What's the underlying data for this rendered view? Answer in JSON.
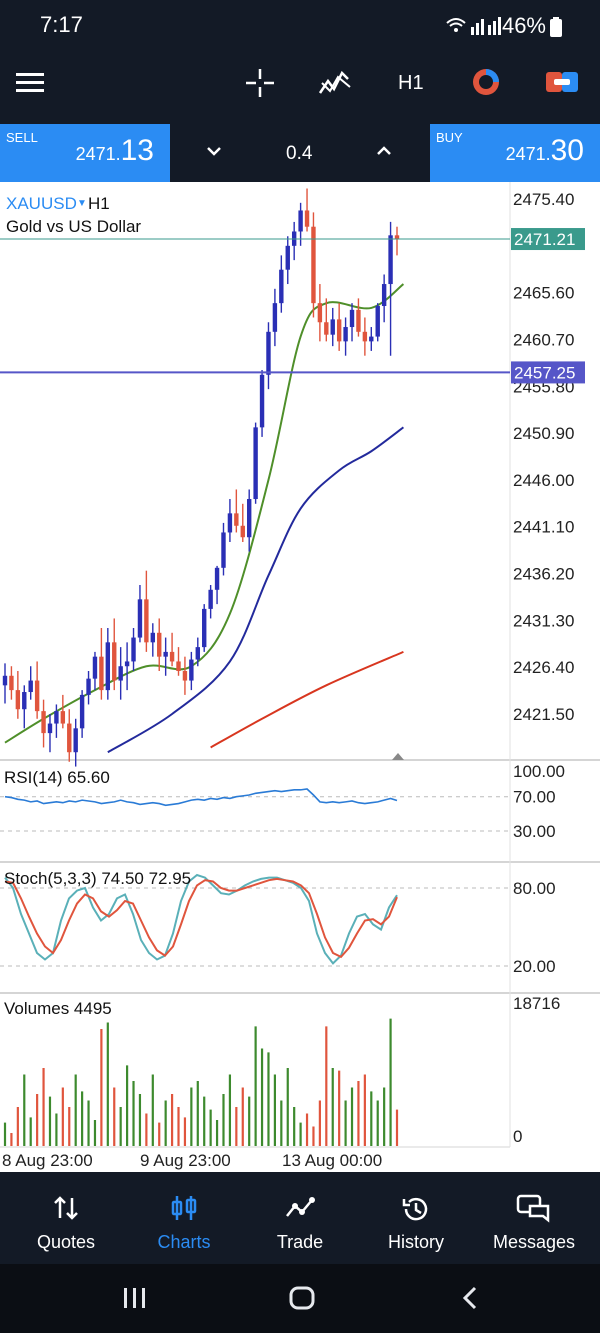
{
  "status": {
    "time": "7:17",
    "battery": "46%"
  },
  "toolbar": {
    "timeframe": "H1"
  },
  "quote": {
    "sell_label": "SELL",
    "sell_price_main": "2471.",
    "sell_price_big": "13",
    "lot": "0.4",
    "buy_label": "BUY",
    "buy_price_main": "2471.",
    "buy_price_big": "30"
  },
  "chart": {
    "symbol": "XAUUSD",
    "timeframe": "H1",
    "description": "Gold vs US Dollar",
    "price_labels": [
      "2475.40",
      "2465.60",
      "2460.70",
      "2455.80",
      "2450.90",
      "2446.00",
      "2441.10",
      "2436.20",
      "2431.30",
      "2426.40",
      "2421.50"
    ],
    "current_price_label": "2471.21",
    "hline_label": "2457.25",
    "time_labels": [
      "8 Aug 23:00",
      "9 Aug 23:00",
      "13 Aug 00:00"
    ],
    "colors": {
      "bull": "#2a2fb5",
      "bear": "#e0553d",
      "ma_fast": "#4f8f2a",
      "ma_mid": "#232a9c",
      "ma_slow": "#d8361f",
      "hline": "#5656c8",
      "current": "#3a9a8c"
    }
  },
  "rsi": {
    "label": "RSI(14) 65.60",
    "levels": [
      "100.00",
      "70.00",
      "30.00"
    ]
  },
  "stoch": {
    "label": "Stoch(5,3,3) 74.50 72.95",
    "levels": [
      "80.00",
      "20.00"
    ]
  },
  "volumes": {
    "label": "Volumes 4495",
    "max": "18716",
    "min": "0"
  },
  "chart_data": {
    "type": "candlestick",
    "symbol": "XAUUSD",
    "timeframe": "H1",
    "x_ticks": [
      "8 Aug 23:00",
      "9 Aug 23:00",
      "13 Aug 00:00"
    ],
    "ylim": [
      2419.0,
      2477.0
    ],
    "candles": [
      [
        2424.5,
        2426.8,
        2422.6,
        2425.5
      ],
      [
        2425.5,
        2426.5,
        2423.0,
        2424.0
      ],
      [
        2424.0,
        2426.0,
        2421.0,
        2422.0
      ],
      [
        2422.0,
        2424.5,
        2420.0,
        2423.8
      ],
      [
        2423.8,
        2426.5,
        2423.0,
        2425.0
      ],
      [
        2425.0,
        2427.0,
        2421.0,
        2421.8
      ],
      [
        2421.8,
        2423.0,
        2418.0,
        2419.5
      ],
      [
        2419.5,
        2421.5,
        2417.5,
        2420.5
      ],
      [
        2420.5,
        2422.5,
        2419.0,
        2421.8
      ],
      [
        2421.8,
        2423.5,
        2420.0,
        2420.5
      ],
      [
        2420.5,
        2422.0,
        2416.5,
        2417.5
      ],
      [
        2417.5,
        2421.0,
        2416.0,
        2420.0
      ],
      [
        2420.0,
        2424.0,
        2419.0,
        2423.5
      ],
      [
        2423.5,
        2426.0,
        2422.5,
        2425.2
      ],
      [
        2425.2,
        2428.0,
        2424.0,
        2427.5
      ],
      [
        2427.5,
        2430.5,
        2423.0,
        2424.0
      ],
      [
        2424.0,
        2430.5,
        2423.0,
        2429.0
      ],
      [
        2429.0,
        2431.5,
        2424.0,
        2425.0
      ],
      [
        2425.0,
        2428.5,
        2423.0,
        2426.5
      ],
      [
        2426.5,
        2429.0,
        2424.0,
        2427.0
      ],
      [
        2427.0,
        2430.5,
        2426.0,
        2429.5
      ],
      [
        2429.5,
        2435.0,
        2429.0,
        2433.5
      ],
      [
        2433.5,
        2436.5,
        2428.0,
        2429.0
      ],
      [
        2429.0,
        2431.0,
        2427.5,
        2430.0
      ],
      [
        2430.0,
        2431.5,
        2426.0,
        2427.5
      ],
      [
        2427.5,
        2429.5,
        2425.5,
        2428.0
      ],
      [
        2428.0,
        2430.0,
        2426.5,
        2427.0
      ],
      [
        2427.0,
        2428.5,
        2425.5,
        2426.0
      ],
      [
        2426.0,
        2427.5,
        2423.5,
        2425.0
      ],
      [
        2425.0,
        2428.0,
        2424.0,
        2427.2
      ],
      [
        2427.2,
        2429.5,
        2426.5,
        2428.5
      ],
      [
        2428.5,
        2433.0,
        2428.0,
        2432.5
      ],
      [
        2432.5,
        2435.0,
        2431.5,
        2434.5
      ],
      [
        2434.5,
        2437.0,
        2433.0,
        2436.8
      ],
      [
        2436.8,
        2441.5,
        2436.0,
        2440.5
      ],
      [
        2440.5,
        2444.0,
        2439.5,
        2442.5
      ],
      [
        2442.5,
        2445.0,
        2440.5,
        2441.2
      ],
      [
        2441.2,
        2443.5,
        2439.5,
        2440.0
      ],
      [
        2440.0,
        2445.0,
        2438.5,
        2444.0
      ],
      [
        2444.0,
        2452.0,
        2443.5,
        2451.5
      ],
      [
        2451.5,
        2457.5,
        2450.5,
        2457.0
      ],
      [
        2457.0,
        2462.5,
        2455.5,
        2461.5
      ],
      [
        2461.5,
        2466.0,
        2460.0,
        2464.5
      ],
      [
        2464.5,
        2469.5,
        2463.5,
        2468.0
      ],
      [
        2468.0,
        2471.5,
        2466.5,
        2470.5
      ],
      [
        2470.5,
        2473.0,
        2469.0,
        2472.0
      ],
      [
        2472.0,
        2475.0,
        2470.5,
        2474.2
      ],
      [
        2474.2,
        2476.5,
        2472.0,
        2472.5
      ],
      [
        2472.5,
        2474.0,
        2463.0,
        2464.5
      ],
      [
        2464.5,
        2466.5,
        2460.5,
        2462.5
      ],
      [
        2462.5,
        2465.0,
        2460.5,
        2461.2
      ],
      [
        2461.2,
        2464.0,
        2460.0,
        2462.8
      ],
      [
        2462.8,
        2464.5,
        2459.5,
        2460.5
      ],
      [
        2460.5,
        2463.0,
        2459.0,
        2462.0
      ],
      [
        2462.0,
        2464.5,
        2460.5,
        2463.8
      ],
      [
        2463.8,
        2465.0,
        2461.0,
        2461.5
      ],
      [
        2461.5,
        2463.0,
        2459.0,
        2460.5
      ],
      [
        2460.5,
        2462.0,
        2459.5,
        2461.0
      ],
      [
        2461.0,
        2464.5,
        2460.5,
        2464.2
      ],
      [
        2464.2,
        2467.5,
        2462.5,
        2466.5
      ],
      [
        2466.5,
        2473.0,
        2459.0,
        2471.6
      ],
      [
        2471.6,
        2472.5,
        2469.5,
        2471.2
      ]
    ],
    "moving_averages": [
      {
        "name": "fast",
        "color": "#4f8f2a",
        "points": [
          [
            0,
            2418.5
          ],
          [
            6,
            2421.0
          ],
          [
            14,
            2424.0
          ],
          [
            22,
            2426.5
          ],
          [
            29,
            2426.5
          ],
          [
            35,
            2432.0
          ],
          [
            41,
            2446.0
          ],
          [
            46,
            2461.0
          ],
          [
            50,
            2464.5
          ],
          [
            57,
            2464.0
          ],
          [
            62,
            2466.5
          ]
        ]
      },
      {
        "name": "mid",
        "color": "#232a9c",
        "points": [
          [
            16,
            2417.5
          ],
          [
            26,
            2421.5
          ],
          [
            35,
            2427.0
          ],
          [
            41,
            2436.0
          ],
          [
            46,
            2443.0
          ],
          [
            52,
            2447.0
          ],
          [
            57,
            2449.0
          ],
          [
            62,
            2451.5
          ]
        ]
      },
      {
        "name": "slow",
        "color": "#d8361f",
        "points": [
          [
            32,
            2418.0
          ],
          [
            40,
            2421.0
          ],
          [
            50,
            2424.5
          ],
          [
            62,
            2428.0
          ]
        ]
      }
    ],
    "current_price": 2471.21,
    "horizontal_line": 2457.25,
    "rsi": {
      "period": 14,
      "value": 65.6,
      "levels": [
        100,
        70,
        30
      ],
      "values": [
        70,
        69,
        67,
        66,
        64,
        65,
        62,
        63,
        64,
        63,
        65,
        64,
        66,
        65,
        64,
        62,
        63,
        64,
        66,
        64,
        63,
        61,
        62,
        63,
        62,
        60,
        61,
        62,
        64,
        66,
        67,
        66,
        68,
        67,
        69,
        68,
        70,
        71,
        72,
        74,
        75,
        76,
        77,
        76,
        77,
        78,
        78,
        79,
        72,
        64,
        63,
        64,
        63,
        64,
        65,
        63,
        62,
        63,
        64,
        66,
        68,
        65.6
      ]
    },
    "stoch": {
      "params": "5,3,3",
      "k": 74.5,
      "d": 72.95,
      "levels": [
        80,
        20
      ],
      "k_values": [
        88,
        80,
        60,
        45,
        30,
        25,
        30,
        55,
        72,
        78,
        80,
        65,
        55,
        60,
        72,
        75,
        60,
        40,
        30,
        25,
        28,
        45,
        70,
        85,
        90,
        88,
        82,
        76,
        75,
        78,
        82,
        85,
        87,
        88,
        88,
        86,
        84,
        80,
        70,
        45,
        30,
        22,
        28,
        45,
        58,
        60,
        52,
        48,
        65,
        74.5
      ],
      "d_values": [
        85,
        84,
        72,
        58,
        45,
        35,
        30,
        40,
        55,
        68,
        75,
        72,
        62,
        58,
        63,
        70,
        68,
        55,
        42,
        32,
        28,
        35,
        52,
        70,
        82,
        86,
        85,
        80,
        78,
        78,
        80,
        82,
        84,
        86,
        87,
        86,
        85,
        82,
        76,
        60,
        42,
        30,
        27,
        34,
        45,
        55,
        56,
        52,
        58,
        72.95
      ]
    },
    "volumes": {
      "max": 18716,
      "last": 4495
    }
  }
}
